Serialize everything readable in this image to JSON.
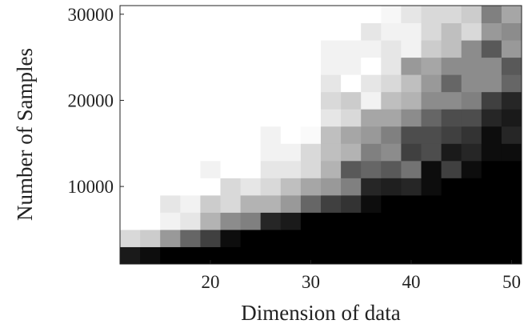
{
  "chart_data": {
    "type": "heatmap",
    "xlabel": "Dimension of data",
    "ylabel": "Number of Samples",
    "x": [
      12,
      14,
      16,
      18,
      20,
      22,
      24,
      26,
      28,
      30,
      32,
      34,
      36,
      38,
      40,
      42,
      44,
      46,
      48,
      50
    ],
    "y": [
      2000,
      4000,
      6000,
      8000,
      10000,
      12000,
      14000,
      16000,
      18000,
      20000,
      22000,
      24000,
      26000,
      28000,
      30000
    ],
    "z": [
      [
        0.1,
        0.05,
        0,
        0,
        0,
        0,
        0,
        0,
        0,
        0,
        0,
        0,
        0,
        0,
        0,
        0,
        0,
        0,
        0,
        0
      ],
      [
        0.85,
        0.8,
        0.6,
        0.4,
        0.25,
        0.05,
        0,
        0,
        0,
        0,
        0,
        0,
        0,
        0,
        0,
        0,
        0,
        0,
        0,
        0
      ],
      [
        1,
        1,
        0.95,
        0.9,
        0.7,
        0.55,
        0.5,
        0.15,
        0.1,
        0,
        0,
        0,
        0,
        0,
        0,
        0,
        0,
        0,
        0,
        0
      ],
      [
        1,
        1,
        0.9,
        0.95,
        0.8,
        0.85,
        0.7,
        0.7,
        0.6,
        0.4,
        0.25,
        0.2,
        0.05,
        0,
        0,
        0,
        0,
        0,
        0,
        0
      ],
      [
        1,
        1,
        1,
        1,
        1,
        0.85,
        0.9,
        0.85,
        0.75,
        0.65,
        0.6,
        0.5,
        0.15,
        0.12,
        0.15,
        0.05,
        0,
        0,
        0,
        0
      ],
      [
        1,
        1,
        1,
        1,
        0.95,
        1,
        1,
        0.9,
        0.9,
        0.85,
        0.7,
        0.35,
        0.4,
        0.35,
        0.45,
        0.05,
        0.25,
        0.05,
        0,
        0
      ],
      [
        1,
        1,
        1,
        1,
        1,
        1,
        1,
        0.95,
        0.95,
        0.85,
        0.75,
        0.7,
        0.5,
        0.55,
        0.25,
        0.3,
        0.1,
        0.15,
        0.05,
        0.05
      ],
      [
        1,
        1,
        1,
        1,
        1,
        1,
        1,
        0.95,
        1,
        0.98,
        0.75,
        0.65,
        0.6,
        0.5,
        0.3,
        0.3,
        0.25,
        0.2,
        0.05,
        0.15
      ],
      [
        1,
        1,
        1,
        1,
        1,
        1,
        1,
        1,
        1,
        1,
        0.9,
        0.85,
        0.65,
        0.65,
        0.55,
        0.4,
        0.3,
        0.3,
        0.15,
        0.1
      ],
      [
        1,
        1,
        1,
        1,
        1,
        1,
        1,
        1,
        1,
        1,
        0.85,
        0.8,
        0.95,
        0.75,
        0.7,
        0.55,
        0.55,
        0.5,
        0.25,
        0.15
      ],
      [
        1,
        1,
        1,
        1,
        1,
        1,
        1,
        1,
        1,
        1,
        0.9,
        1,
        0.9,
        0.85,
        0.75,
        0.6,
        0.4,
        0.55,
        0.55,
        0.4
      ],
      [
        1,
        1,
        1,
        1,
        1,
        1,
        1,
        1,
        1,
        1,
        0.95,
        0.95,
        1,
        0.9,
        0.6,
        0.65,
        0.55,
        0.55,
        0.55,
        0.35
      ],
      [
        1,
        1,
        1,
        1,
        1,
        1,
        1,
        1,
        1,
        1,
        0.95,
        0.95,
        0.95,
        0.9,
        0.95,
        0.8,
        0.75,
        0.55,
        0.35,
        0.6
      ],
      [
        1,
        1,
        1,
        1,
        1,
        1,
        1,
        1,
        1,
        1,
        1,
        1,
        0.9,
        0.95,
        0.95,
        0.85,
        0.75,
        0.85,
        0.6,
        0.55
      ],
      [
        1,
        1,
        1,
        1,
        1,
        1,
        1,
        1,
        1,
        1,
        1,
        1,
        1,
        0.97,
        0.9,
        0.85,
        0.85,
        0.8,
        0.5,
        0.65
      ]
    ],
    "xlim": [
      11,
      51
    ],
    "ylim": [
      1000,
      31000
    ],
    "xticks": [
      20,
      30,
      40,
      50
    ],
    "yticks": [
      10000,
      20000,
      30000
    ]
  }
}
